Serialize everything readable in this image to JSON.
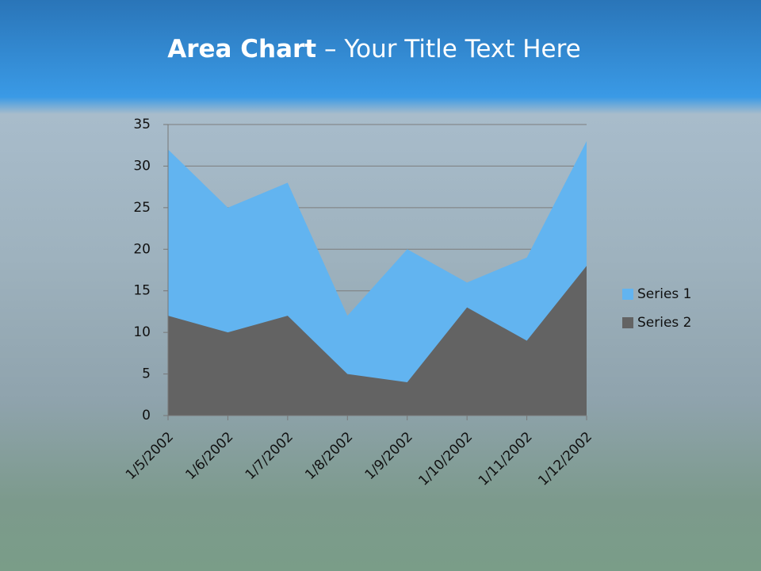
{
  "chart_data": {
    "type": "area",
    "title_bold": "Area Chart",
    "title_rest": "– Your Title Text Here",
    "categories": [
      "1/5/2002",
      "1/6/2002",
      "1/7/2002",
      "1/8/2002",
      "1/9/2002",
      "1/10/2002",
      "1/11/2002",
      "1/12/2002"
    ],
    "series": [
      {
        "name": "Series 1",
        "color": "#62b4f0",
        "values": [
          32,
          25,
          28,
          12,
          20,
          16,
          19,
          33
        ]
      },
      {
        "name": "Series 2",
        "color": "#636363",
        "values": [
          12,
          10,
          12,
          5,
          4,
          13,
          9,
          18
        ]
      }
    ],
    "ylim": [
      0,
      35
    ],
    "yticks": [
      0,
      5,
      10,
      15,
      20,
      25,
      30,
      35
    ],
    "grid": true,
    "legend": "right"
  }
}
